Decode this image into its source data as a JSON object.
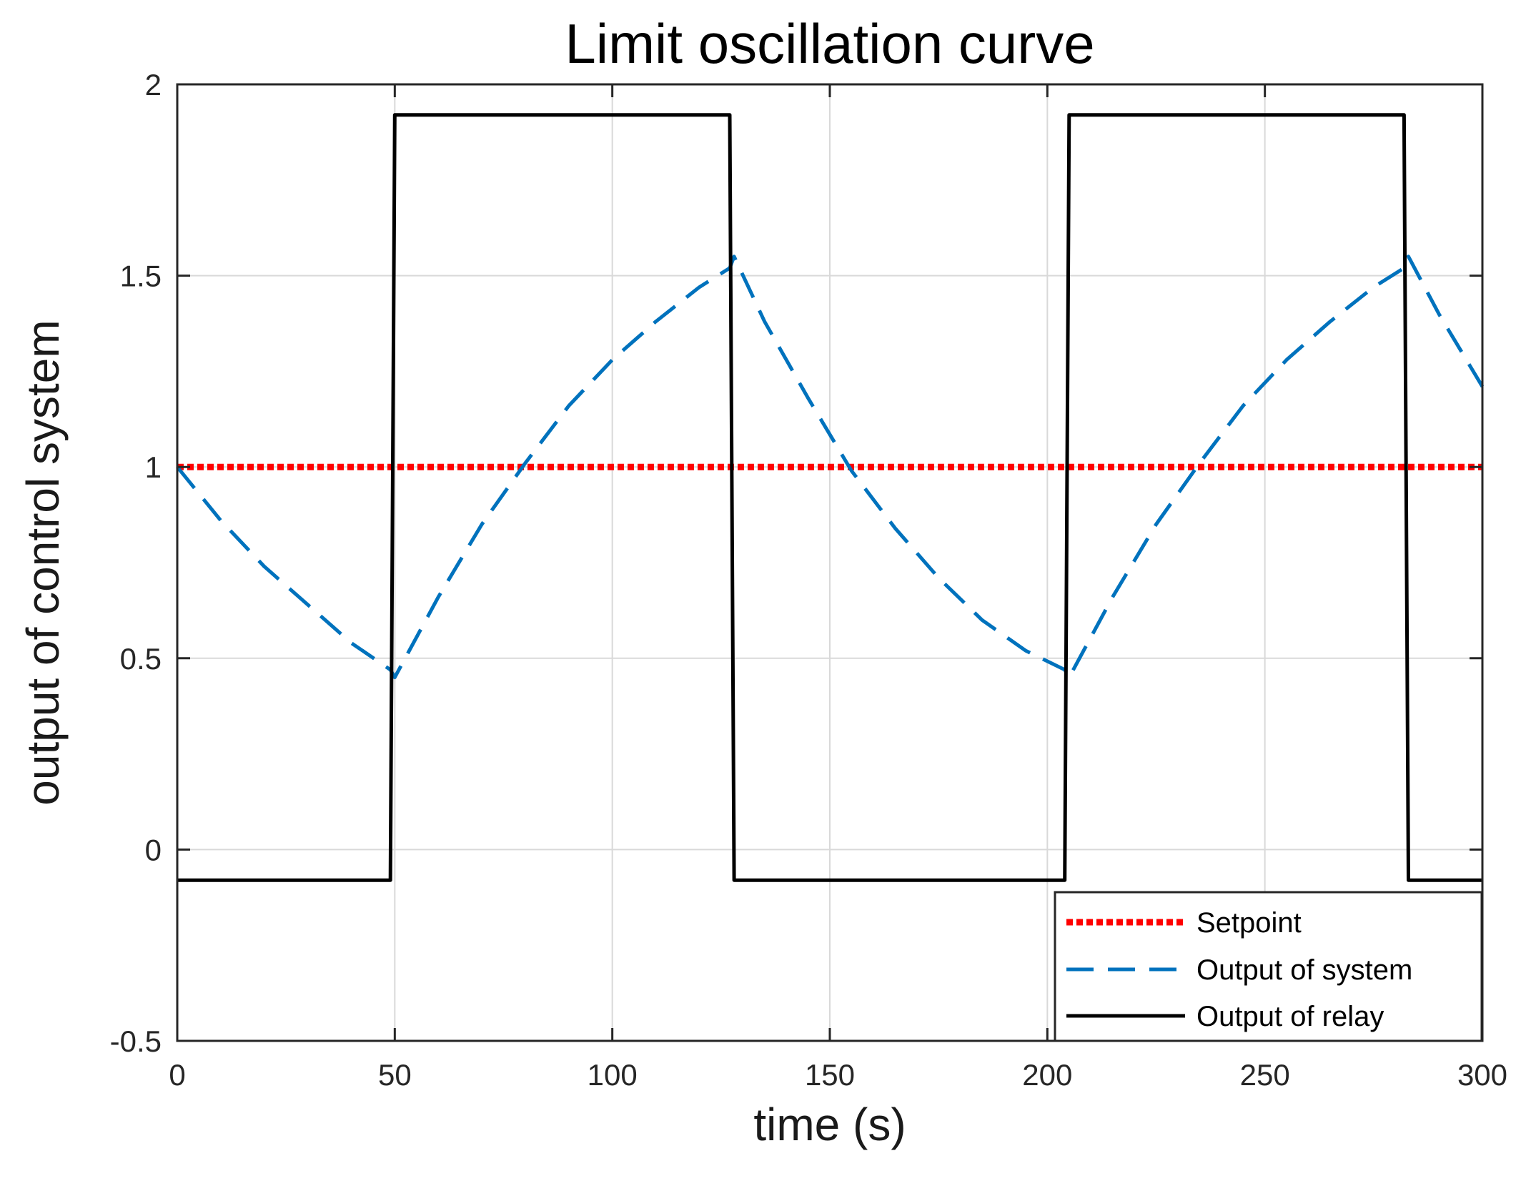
{
  "chart_data": {
    "type": "line",
    "title": "Limit oscillation curve",
    "xlabel": "time (s)",
    "ylabel": "output of control system",
    "xlim": [
      0,
      300
    ],
    "ylim": [
      -0.5,
      2
    ],
    "xticks": [
      0,
      50,
      100,
      150,
      200,
      250,
      300
    ],
    "xtick_labels": [
      "0",
      "50",
      "100",
      "150",
      "200",
      "250",
      "300"
    ],
    "yticks": [
      -0.5,
      0,
      0.5,
      1,
      1.5,
      2
    ],
    "ytick_labels": [
      "-0.5",
      "0",
      "0.5",
      "1",
      "1.5",
      "2"
    ],
    "grid": true,
    "legend_position": "bottom-right",
    "series": [
      {
        "name": "Setpoint",
        "style": "dotted",
        "color": "#ff0000",
        "x": [
          0,
          300
        ],
        "y": [
          1,
          1
        ]
      },
      {
        "name": "Output of system",
        "style": "dashed",
        "color": "#0072bd",
        "x": [
          0,
          10,
          20,
          30,
          40,
          49,
          50,
          60,
          70,
          80,
          90,
          100,
          110,
          120,
          127,
          128,
          135,
          145,
          155,
          165,
          175,
          185,
          195,
          204,
          205,
          215,
          225,
          235,
          245,
          255,
          265,
          275,
          282,
          283,
          290,
          300
        ],
        "y": [
          1.0,
          0.86,
          0.74,
          0.64,
          0.54,
          0.47,
          0.45,
          0.66,
          0.85,
          1.01,
          1.16,
          1.28,
          1.38,
          1.47,
          1.52,
          1.55,
          1.38,
          1.18,
          0.99,
          0.84,
          0.71,
          0.6,
          0.52,
          0.47,
          0.45,
          0.66,
          0.85,
          1.01,
          1.16,
          1.28,
          1.38,
          1.47,
          1.52,
          1.55,
          1.4,
          1.21
        ]
      },
      {
        "name": "Output of relay",
        "style": "solid",
        "color": "#000000",
        "x": [
          0,
          49,
          50,
          127,
          128,
          204,
          205,
          282,
          283,
          300
        ],
        "y": [
          -0.08,
          -0.08,
          1.92,
          1.92,
          -0.08,
          -0.08,
          1.92,
          1.92,
          -0.08,
          -0.08
        ]
      }
    ]
  }
}
